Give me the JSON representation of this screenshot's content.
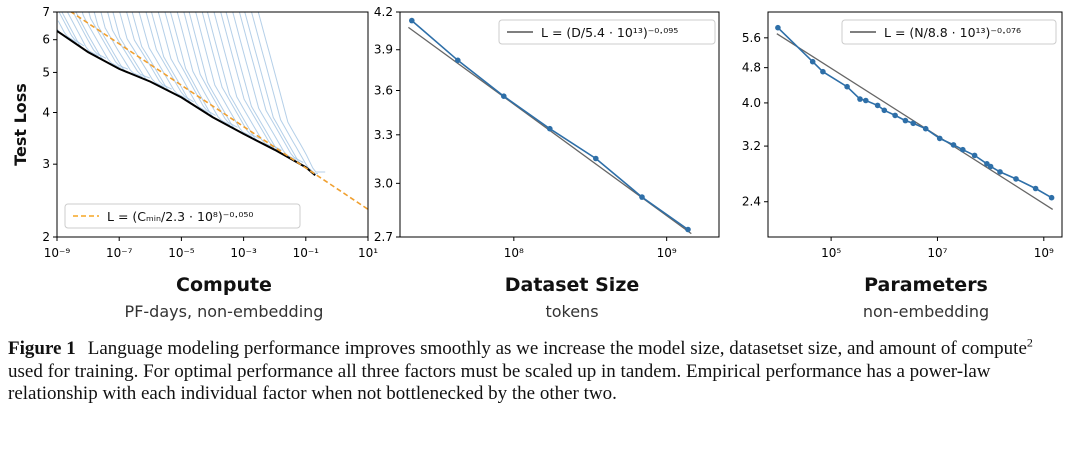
{
  "chart_data": [
    {
      "type": "line",
      "title": "Compute",
      "subtitle": "PF-days, non-embedding",
      "ylabel": "Test Loss",
      "xscale": "log",
      "yscale": "log",
      "xlim": [
        1e-09,
        10
      ],
      "ylim": [
        2,
        7
      ],
      "xticks": [
        {
          "value": 1e-09,
          "label": "10⁻⁹"
        },
        {
          "value": 1e-07,
          "label": "10⁻⁷"
        },
        {
          "value": 1e-05,
          "label": "10⁻⁵"
        },
        {
          "value": 0.001,
          "label": "10⁻³"
        },
        {
          "value": 0.1,
          "label": "10⁻¹"
        },
        {
          "value": 10,
          "label": "10¹"
        }
      ],
      "yticks": [
        {
          "value": 2,
          "label": "2"
        },
        {
          "value": 3,
          "label": "3"
        },
        {
          "value": 4,
          "label": "4"
        },
        {
          "value": 5,
          "label": "5"
        },
        {
          "value": 6,
          "label": "6"
        },
        {
          "value": 7,
          "label": "7"
        }
      ],
      "legend": {
        "placement": "bottom-left",
        "text": "L = (Cₘᵢₙ/2.3 · 10⁸)⁻⁰·⁰⁵⁰",
        "color": "#f5a623"
      },
      "fit": {
        "name": "L = (C_min/2.3 · 10^8)^-0.050",
        "scale": 230000000.0,
        "exponent": -0.05,
        "style": "dashed",
        "color": "#f0a030"
      },
      "frontier": {
        "color": "#000000",
        "x": [
          1e-09,
          1e-08,
          1e-07,
          1e-06,
          1e-05,
          0.0001,
          0.001,
          0.01,
          0.1,
          0.2
        ],
        "y": [
          6.3,
          5.6,
          5.1,
          4.75,
          4.35,
          3.9,
          3.55,
          3.25,
          2.95,
          2.82
        ]
      },
      "runs_color": "#9bbfe0"
    },
    {
      "type": "line",
      "title": "Dataset Size",
      "subtitle": "tokens",
      "xscale": "log",
      "yscale": "log",
      "xlim": [
        18000000.0,
        2200000000.0
      ],
      "ylim": [
        2.7,
        4.2
      ],
      "xticks": [
        {
          "value": 100000000.0,
          "label": "10⁸"
        },
        {
          "value": 1000000000.0,
          "label": "10⁹"
        }
      ],
      "yticks": [
        {
          "value": 2.7,
          "label": "2.7"
        },
        {
          "value": 3.0,
          "label": "3.0"
        },
        {
          "value": 3.3,
          "label": "3.3"
        },
        {
          "value": 3.6,
          "label": "3.6"
        },
        {
          "value": 3.9,
          "label": "3.9"
        },
        {
          "value": 4.2,
          "label": "4.2"
        }
      ],
      "legend": {
        "placement": "top-right",
        "text": "L = (D/5.4 · 10¹³)⁻⁰·⁰⁹⁵",
        "color": "#555555"
      },
      "fit": {
        "name": "L = (D/5.4 · 10^13)^-0.095",
        "scale": 54000000000000.0,
        "exponent": -0.095,
        "color": "#666666"
      },
      "series": [
        {
          "color": "#2e6fa8",
          "x": [
            21500000.0,
            43000000.0,
            86000000.0,
            172000000.0,
            344000000.0,
            690000000.0,
            1380000000.0
          ],
          "y": [
            4.13,
            3.82,
            3.56,
            3.34,
            3.15,
            2.92,
            2.74
          ]
        }
      ]
    },
    {
      "type": "line",
      "title": "Parameters",
      "subtitle": "non-embedding",
      "xscale": "log",
      "yscale": "log",
      "xlim": [
        6500.0,
        2200000000.0
      ],
      "ylim": [
        2.0,
        6.4
      ],
      "xticks": [
        {
          "value": 100000.0,
          "label": "10⁵"
        },
        {
          "value": 10000000.0,
          "label": "10⁷"
        },
        {
          "value": 1000000000.0,
          "label": "10⁹"
        }
      ],
      "yticks": [
        {
          "value": 2.4,
          "label": "2.4"
        },
        {
          "value": 3.2,
          "label": "3.2"
        },
        {
          "value": 4.0,
          "label": "4.0"
        },
        {
          "value": 4.8,
          "label": "4.8"
        },
        {
          "value": 5.6,
          "label": "5.6"
        }
      ],
      "legend": {
        "placement": "top-right",
        "text": "L = (N/8.8 · 10¹³)⁻⁰·⁰⁷⁶",
        "color": "#555555"
      },
      "fit": {
        "name": "L = (N/8.8 · 10^13)^-0.076",
        "scale": 88000000000000.0,
        "exponent": -0.076,
        "color": "#666666"
      },
      "series": [
        {
          "color": "#2e6fa8",
          "x": [
            10000.0,
            45000.0,
            70000.0,
            200000.0,
            350000.0,
            450000.0,
            750000.0,
            1000000.0,
            1600000.0,
            2500000.0,
            3500000.0,
            6000000.0,
            11000000.0,
            20000000.0,
            30000000.0,
            50000000.0,
            85000000.0,
            100000000.0,
            150000000.0,
            300000000.0,
            700000000.0,
            1400000000.0
          ],
          "y": [
            5.9,
            4.95,
            4.7,
            4.35,
            4.08,
            4.05,
            3.95,
            3.85,
            3.75,
            3.65,
            3.6,
            3.5,
            3.33,
            3.22,
            3.14,
            3.05,
            2.92,
            2.88,
            2.8,
            2.7,
            2.57,
            2.45
          ]
        }
      ]
    }
  ],
  "caption": {
    "label": "Figure 1",
    "text_before_sup": "Language modeling performance improves smoothly as we increase the model size, datasetset size, and amount of compute",
    "sup": "2",
    "text_after_sup": " used for training. For optimal performance all three factors must be scaled up in tandem. Empirical performance has a power-law relationship with each individual factor when not bottlenecked by the other two."
  }
}
